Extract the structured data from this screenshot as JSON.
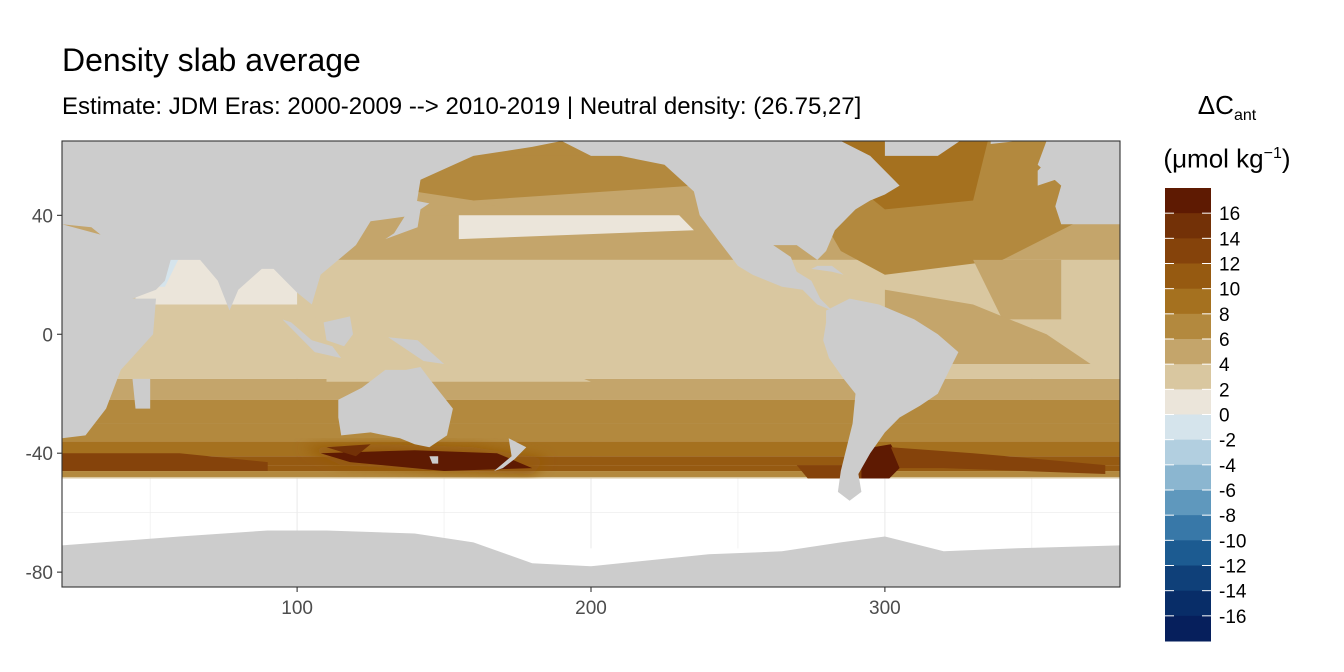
{
  "chart_data": {
    "type": "heatmap",
    "title": "Density slab average",
    "subtitle": "Estimate: JDM Eras: 2000-2009 --> 2010-2019 | Neutral density: (26.75,27]",
    "xlabel": "",
    "ylabel": "",
    "xlim": [
      20,
      380
    ],
    "ylim": [
      -85,
      65
    ],
    "x_ticks": [
      "100",
      "200",
      "300"
    ],
    "x_tick_values": [
      100,
      200,
      300
    ],
    "y_ticks": [
      "40",
      "0",
      "-40",
      "-80"
    ],
    "y_tick_values": [
      40,
      0,
      -40,
      -80
    ],
    "legend": {
      "title_main": "ΔC",
      "title_sub": "ant",
      "title_unit_prefix": "(μmol kg",
      "title_unit_sup": "−1",
      "title_unit_suffix": ")",
      "labels": [
        "16",
        "14",
        "12",
        "10",
        "8",
        "6",
        "4",
        "2",
        "0",
        "-2",
        "-4",
        "-6",
        "-8",
        "-10",
        "-12",
        "-14",
        "-16"
      ],
      "colors": [
        "#5e1a02",
        "#733107",
        "#85430b",
        "#965a11",
        "#a5711f",
        "#b3893e",
        "#c4a56b",
        "#d9c7a0",
        "#ebe5da",
        "#d5e4ec",
        "#b2cfe0",
        "#8bb6d0",
        "#5f98bd",
        "#3878a8",
        "#1c5b91",
        "#0f4079",
        "#082d68",
        "#061f5c"
      ]
    },
    "zones": [
      {
        "region": "Southern Ocean south of Australia (110-180E, 42-50S)",
        "value": 17
      },
      {
        "region": "South Atlantic near Argentina (288-305E, 40-55S)",
        "value": 17
      },
      {
        "region": "Southern Ocean band (40-50S)",
        "value": 12
      },
      {
        "region": "South subtropical gyres (20-40S)",
        "value": 8
      },
      {
        "region": "Tropical Pacific",
        "value": 3
      },
      {
        "region": "North Pacific subpolar",
        "value": 7
      },
      {
        "region": "North Atlantic",
        "value": 9
      },
      {
        "region": "Arabian Sea / Bay of Bengal",
        "value": 1
      }
    ]
  },
  "colors": {
    "land": "#cccccc",
    "no_data": "#ffffff",
    "gridline": "#ebebeb"
  }
}
